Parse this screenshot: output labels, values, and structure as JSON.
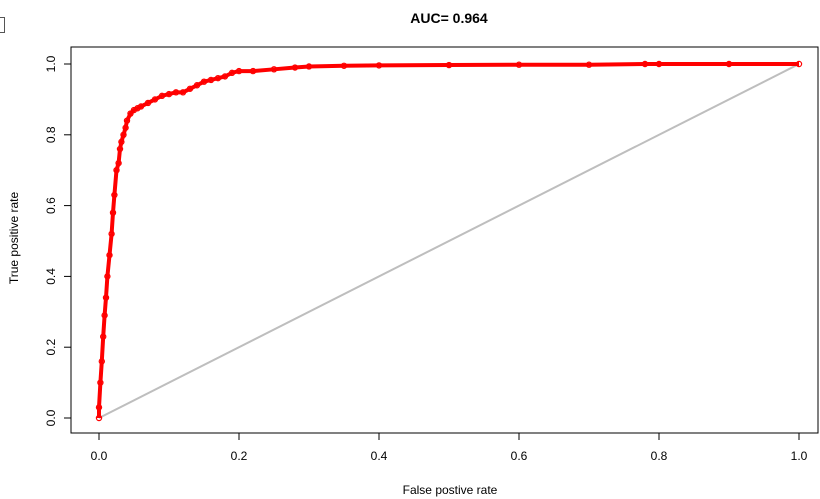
{
  "chart_data": {
    "type": "line",
    "title": "AUC= 0.964",
    "xlabel": "False postive rate",
    "ylabel": "True positive rate",
    "xlim": [
      0,
      1
    ],
    "ylim": [
      0,
      1
    ],
    "x_ticks": [
      "0.0",
      "0.2",
      "0.4",
      "0.6",
      "0.8",
      "1.0"
    ],
    "y_ticks": [
      "0.0",
      "0.2",
      "0.4",
      "0.6",
      "0.8",
      "1.0"
    ],
    "grid": false,
    "legend": "none",
    "series": [
      {
        "color": "#ff0000",
        "x": [
          0,
          0,
          0.002,
          0.004,
          0.006,
          0.008,
          0.01,
          0.012,
          0.015,
          0.018,
          0.02,
          0.022,
          0.025,
          0.028,
          0.03,
          0.032,
          0.035,
          0.038,
          0.04,
          0.045,
          0.05,
          0.055,
          0.06,
          0.07,
          0.08,
          0.09,
          0.1,
          0.11,
          0.12,
          0.13,
          0.14,
          0.15,
          0.16,
          0.17,
          0.18,
          0.19,
          0.2,
          0.22,
          0.25,
          0.28,
          0.3,
          0.35,
          0.4,
          0.5,
          0.6,
          0.7,
          0.78,
          0.8,
          0.9,
          1.0
        ],
        "y": [
          0,
          0.03,
          0.1,
          0.16,
          0.23,
          0.29,
          0.34,
          0.4,
          0.46,
          0.52,
          0.58,
          0.63,
          0.7,
          0.72,
          0.76,
          0.78,
          0.8,
          0.82,
          0.84,
          0.86,
          0.87,
          0.875,
          0.88,
          0.89,
          0.9,
          0.91,
          0.915,
          0.92,
          0.92,
          0.93,
          0.94,
          0.95,
          0.955,
          0.96,
          0.965,
          0.975,
          0.98,
          0.98,
          0.985,
          0.99,
          0.993,
          0.995,
          0.996,
          0.997,
          0.998,
          0.998,
          1.0,
          1.0,
          1.0,
          1.0
        ]
      },
      {
        "color": "#bebebe",
        "x": [
          0,
          1
        ],
        "y": [
          0,
          1
        ]
      }
    ]
  }
}
